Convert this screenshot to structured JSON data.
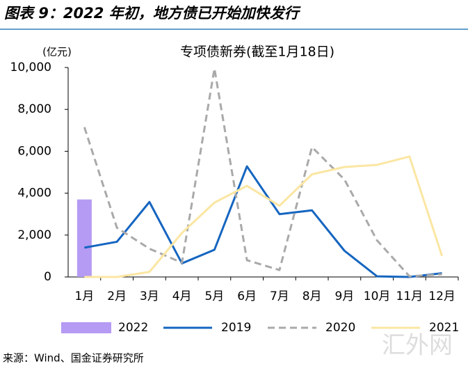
{
  "header": {
    "title": "图表 9：2022 年初，地方债已开始加快发行"
  },
  "chart_data": {
    "type": "bar-line",
    "title": "专项债新券(截至1月18日)",
    "y_label": "(亿元)",
    "categories": [
      "1月",
      "2月",
      "3月",
      "4月",
      "5月",
      "6月",
      "7月",
      "8月",
      "9月",
      "10月",
      "11月",
      "12月"
    ],
    "series": [
      {
        "name": "2022",
        "type": "bar",
        "color": "#b59bf3",
        "values": [
          3700,
          null,
          null,
          null,
          null,
          null,
          null,
          null,
          null,
          null,
          null,
          null
        ]
      },
      {
        "name": "2019",
        "type": "line",
        "color": "#1565c0",
        "dash": false,
        "values": [
          1400,
          1680,
          3580,
          650,
          1300,
          5280,
          3000,
          3180,
          1250,
          30,
          0,
          180
        ]
      },
      {
        "name": "2020",
        "type": "line",
        "color": "#a9a9a9",
        "dash": true,
        "values": [
          7150,
          2350,
          1350,
          680,
          9950,
          800,
          330,
          6200,
          4650,
          1750,
          30,
          130
        ]
      },
      {
        "name": "2021",
        "type": "line",
        "color": "#fbe6a2",
        "dash": false,
        "values": [
          0,
          0,
          240,
          2100,
          3550,
          4350,
          3400,
          4900,
          5250,
          5350,
          5750,
          1000
        ]
      }
    ],
    "ylim": [
      0,
      10000
    ],
    "yticks": [
      0,
      {
        "value": 2000,
        "label": "2,000"
      },
      {
        "value": 4000,
        "label": "4,000"
      },
      {
        "value": 6000,
        "label": "6,000"
      },
      {
        "value": 8000,
        "label": "8,000"
      },
      {
        "value": 10000,
        "label": "10,000"
      }
    ]
  },
  "source": "来源：Wind、国金证券研究所",
  "watermark": "汇外网"
}
